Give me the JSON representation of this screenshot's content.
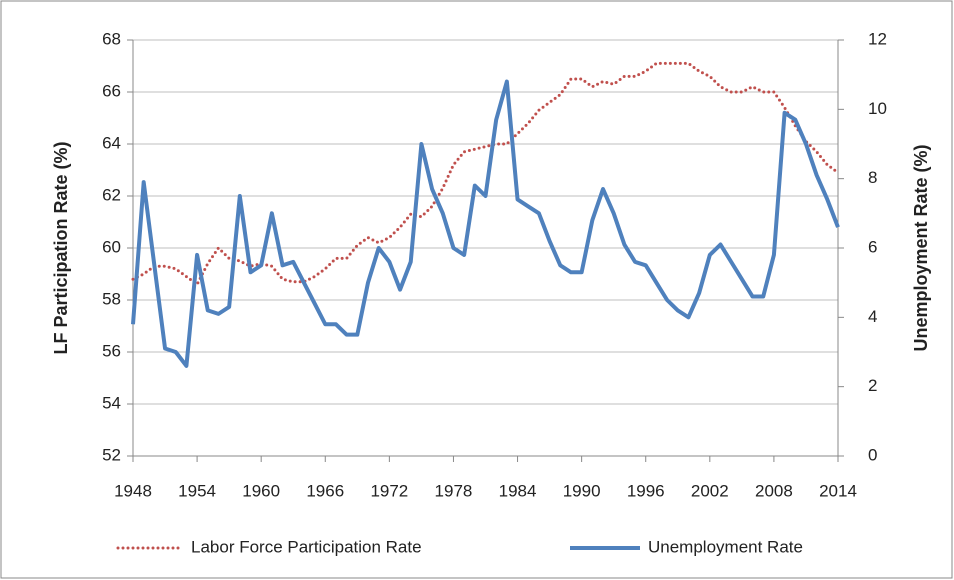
{
  "chart_data": {
    "type": "line",
    "y_label": "LF Participation Rate (%)",
    "y2_label": "Unemployment Rate (%)",
    "x": [
      1948,
      1949,
      1950,
      1951,
      1952,
      1953,
      1954,
      1955,
      1956,
      1957,
      1958,
      1959,
      1960,
      1961,
      1962,
      1963,
      1964,
      1965,
      1966,
      1967,
      1968,
      1969,
      1970,
      1971,
      1972,
      1973,
      1974,
      1975,
      1976,
      1977,
      1978,
      1979,
      1980,
      1981,
      1982,
      1983,
      1984,
      1985,
      1986,
      1987,
      1988,
      1989,
      1990,
      1991,
      1992,
      1993,
      1994,
      1995,
      1996,
      1997,
      1998,
      1999,
      2000,
      2001,
      2002,
      2003,
      2004,
      2005,
      2006,
      2007,
      2008,
      2009,
      2010,
      2011,
      2012,
      2013,
      2014
    ],
    "series": [
      {
        "name": "Labor Force Participation Rate",
        "color": "#c0504d",
        "style": "dotted",
        "axis": "y",
        "values": [
          58.8,
          59.0,
          59.3,
          59.3,
          59.2,
          58.9,
          58.6,
          59.4,
          60.0,
          59.6,
          59.5,
          59.3,
          59.4,
          59.3,
          58.8,
          58.7,
          58.7,
          58.9,
          59.2,
          59.6,
          59.6,
          60.1,
          60.4,
          60.2,
          60.4,
          60.8,
          61.3,
          61.2,
          61.6,
          62.3,
          63.2,
          63.7,
          63.8,
          63.9,
          64.0,
          64.0,
          64.4,
          64.8,
          65.3,
          65.6,
          65.9,
          66.5,
          66.5,
          66.2,
          66.4,
          66.3,
          66.6,
          66.6,
          66.8,
          67.1,
          67.1,
          67.1,
          67.1,
          66.8,
          66.6,
          66.2,
          66.0,
          66.0,
          66.2,
          66.0,
          66.0,
          65.4,
          64.7,
          64.1,
          63.7,
          63.2,
          62.9
        ]
      },
      {
        "name": "Unemployment Rate",
        "color": "#4f81bd",
        "style": "solid",
        "axis": "y2",
        "values": [
          3.8,
          7.9,
          5.5,
          3.1,
          3.0,
          2.6,
          5.8,
          4.2,
          4.1,
          4.3,
          7.5,
          5.3,
          5.5,
          7.0,
          5.5,
          5.6,
          5.0,
          4.4,
          3.8,
          3.8,
          3.5,
          3.5,
          5.0,
          6.0,
          5.6,
          4.8,
          5.6,
          9.0,
          7.7,
          7.0,
          6.0,
          5.8,
          7.8,
          7.5,
          9.7,
          10.8,
          7.4,
          7.2,
          7.0,
          6.2,
          5.5,
          5.3,
          5.3,
          6.8,
          7.7,
          7.0,
          6.1,
          5.6,
          5.5,
          5.0,
          4.5,
          4.2,
          4.0,
          4.7,
          5.8,
          6.1,
          5.6,
          5.1,
          4.6,
          4.6,
          5.8,
          9.9,
          9.7,
          9.0,
          8.1,
          7.4,
          6.6
        ]
      }
    ],
    "xlim": [
      1948,
      2014
    ],
    "xticks": [
      1948,
      1954,
      1960,
      1966,
      1972,
      1978,
      1984,
      1990,
      1996,
      2002,
      2008,
      2014
    ],
    "ylim": [
      52,
      68
    ],
    "yticks": [
      52,
      54,
      56,
      58,
      60,
      62,
      64,
      66,
      68
    ],
    "y2lim": [
      0,
      12
    ],
    "y2ticks": [
      0,
      2,
      4,
      6,
      8,
      10,
      12
    ],
    "grid": true,
    "legend": "bottom"
  }
}
